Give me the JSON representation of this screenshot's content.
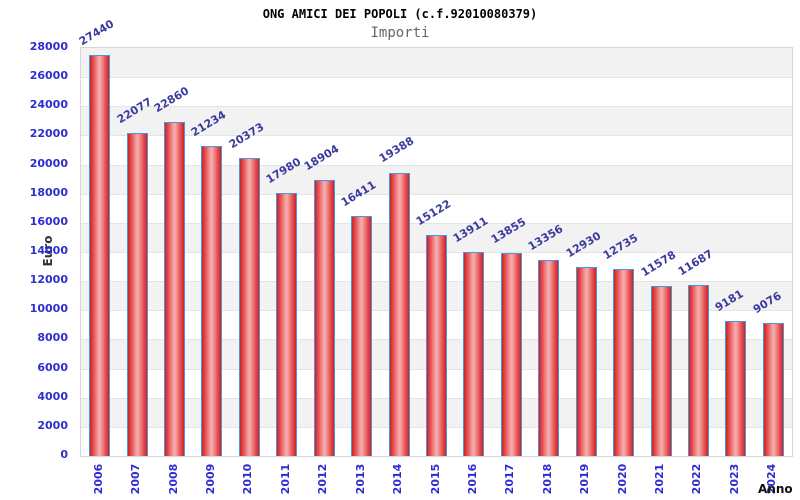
{
  "chart_data": {
    "type": "bar",
    "title": "ONG AMICI DEI POPOLI (c.f.92010080379)",
    "subtitle": "Importi",
    "xlabel": "Anno",
    "ylabel": "Euro",
    "categories": [
      "2006",
      "2007",
      "2008",
      "2009",
      "2010",
      "2011",
      "2012",
      "2013",
      "2014",
      "2015",
      "2016",
      "2017",
      "2018",
      "2019",
      "2020",
      "2021",
      "2022",
      "2023",
      "2024"
    ],
    "values": [
      27440,
      22077,
      22860,
      21234,
      20373,
      17980,
      18904,
      16411,
      19388,
      15122,
      13911,
      13855,
      13356,
      12930,
      12735,
      11578,
      11687,
      9181,
      9076
    ],
    "ylim": [
      0,
      28000
    ],
    "ytick_step": 2000,
    "y_ticks": [
      28000,
      26000,
      24000,
      22000,
      20000,
      18000,
      16000,
      14000,
      12000,
      10000,
      8000,
      6000,
      4000,
      2000,
      0
    ],
    "grid": "horizontal-bands",
    "legend": null,
    "value_label_rotation_deg": -31,
    "x_tick_rotation_deg": -90,
    "colors": {
      "bar_edge": "#c92525",
      "bar_mid": "#e85454",
      "bar_highlight": "#f4a8a8",
      "bar_border": "#4a95e0",
      "tick_label": "#2d2dd0",
      "value_label": "#3a3aa0",
      "title": "#000000",
      "subtitle": "#666666",
      "axis_title": "#333333",
      "band_shaded": "#f2f2f2",
      "band_plain": "#ffffff",
      "gridline": "#e4e4e4",
      "plot_border": "#d6d6d6"
    }
  }
}
